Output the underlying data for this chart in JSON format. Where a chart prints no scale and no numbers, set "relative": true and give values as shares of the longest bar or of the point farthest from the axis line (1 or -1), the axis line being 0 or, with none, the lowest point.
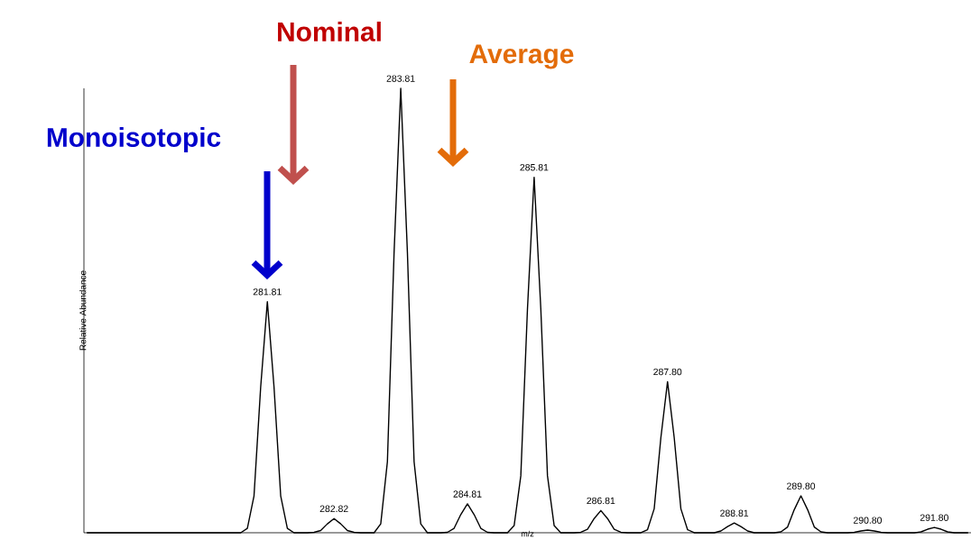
{
  "chart_data": {
    "type": "line",
    "relative": true,
    "xlabel": "m/z",
    "ylabel": "Relative Abundance",
    "categories": [
      null,
      null,
      null,
      null,
      null,
      null,
      null,
      null,
      null,
      null,
      null,
      null,
      null,
      null,
      null,
      null,
      null,
      null,
      null,
      null,
      null,
      null,
      null,
      null,
      null,
      null,
      null,
      null,
      null,
      null,
      null,
      null,
      null,
      null,
      null,
      null,
      null,
      null,
      null,
      null,
      null,
      null,
      null,
      null,
      null,
      null,
      null,
      null,
      null,
      null,
      null,
      null,
      null,
      null,
      null,
      null,
      null,
      null,
      null,
      null,
      null,
      null,
      null,
      null,
      null,
      null,
      null,
      null,
      null,
      null,
      null,
      null,
      null,
      null,
      null,
      null,
      null,
      null,
      null,
      null,
      null,
      null,
      null,
      null,
      null,
      null,
      null,
      null,
      null,
      null,
      null,
      null,
      null,
      null,
      null,
      null,
      null,
      null,
      null,
      null,
      null,
      null,
      null,
      null,
      null,
      null,
      null,
      null,
      null,
      null,
      null,
      null,
      null,
      null,
      null,
      null,
      null,
      null,
      null,
      null,
      null,
      null,
      null,
      null,
      null,
      null,
      null,
      null,
      null,
      null,
      null,
      null,
      null
    ],
    "series": [
      {
        "color": "#000000",
        "values": [
          0,
          0,
          0,
          0,
          0,
          0,
          0,
          0,
          0,
          0,
          0,
          0,
          0,
          0,
          0,
          0,
          0,
          0,
          0,
          0,
          0,
          0,
          0,
          0,
          0.01,
          0.083,
          0.328,
          0.52,
          0.328,
          0.083,
          0.01,
          0,
          0,
          0,
          0.001,
          0.005,
          0.02,
          0.032,
          0.02,
          0.005,
          0.001,
          0,
          0,
          0,
          0.02,
          0.16,
          0.63,
          1,
          0.63,
          0.16,
          0.02,
          0,
          0,
          0,
          0.001,
          0.01,
          0.041,
          0.065,
          0.041,
          0.01,
          0.001,
          0,
          0,
          0,
          0.016,
          0.128,
          0.504,
          0.8,
          0.504,
          0.128,
          0.016,
          0,
          0,
          0,
          0.001,
          0.008,
          0.032,
          0.05,
          0.032,
          0.008,
          0.001,
          0,
          0,
          0,
          0.007,
          0.054,
          0.214,
          0.34,
          0.214,
          0.054,
          0.007,
          0,
          0,
          0,
          0,
          0.004,
          0.014,
          0.022,
          0.014,
          0.004,
          0,
          0,
          0,
          0,
          0.002,
          0.013,
          0.052,
          0.083,
          0.052,
          0.013,
          0.002,
          0,
          0,
          0,
          0,
          0.001,
          0.004,
          0.006,
          0.004,
          0.001,
          0,
          0,
          0,
          0,
          0,
          0.002,
          0.008,
          0.012,
          0.008,
          0.002,
          0,
          0,
          0
        ]
      }
    ],
    "annotations": [
      "Monoisotopic",
      "Nominal",
      "Average",
      {
        "text": "281.81",
        "y": 0.52
      },
      {
        "text": "282.82",
        "y": 0.032
      },
      {
        "text": "283.81",
        "y": 1
      },
      {
        "text": "284.81",
        "y": 0.065
      },
      {
        "text": "285.81",
        "y": 0.8
      },
      {
        "text": "286.81",
        "y": 0.05
      },
      {
        "text": "287.80",
        "y": 0.34
      },
      {
        "text": "288.81",
        "y": 0.022
      },
      {
        "text": "289.80",
        "y": 0.083
      },
      {
        "text": "290.80",
        "y": 0.006
      },
      {
        "text": "291.80",
        "y": 0.012
      }
    ]
  }
}
